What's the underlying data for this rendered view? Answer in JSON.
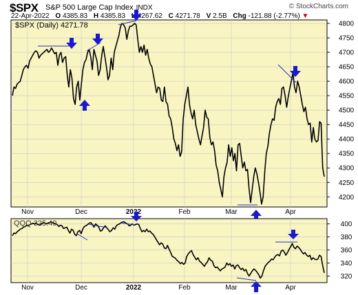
{
  "header": {
    "symbol": "$SPX",
    "description": "S&P 500 Large Cap Index",
    "exchange": "INDX",
    "watermark": "© StockCharts.com",
    "date": "22-Apr-2022",
    "open_label": "O",
    "open": "4385.83",
    "high_label": "H",
    "high": "4385.83",
    "low_label": "L",
    "low": "4267.62",
    "close_label": "C",
    "close": "4271.78",
    "volume_label": "V",
    "volume": "2.5B",
    "change_label": "Chg",
    "change": "-121.88 (-2.77%)",
    "change_icon": "down-triangle-icon",
    "negative_color": "#cc0000"
  },
  "colors": {
    "panel_bg": "#f8f5c2",
    "line": "#000000",
    "arrow": "#1a1acc",
    "trendline": "#2a2acc"
  },
  "chart_data": [
    {
      "type": "line",
      "legend": "$SPX (Daily) 4271.78",
      "x_ticks": [
        "Nov",
        "Dec",
        "2022",
        "Feb",
        "Mar",
        "Apr"
      ],
      "y_ticks": [
        4200,
        4250,
        4300,
        4350,
        4400,
        4450,
        4500,
        4550,
        4600,
        4650,
        4700,
        4750,
        4800
      ],
      "ylim": [
        4165,
        4812
      ],
      "grid": true,
      "series": [
        {
          "values": [
            4550,
            4580,
            4575,
            4590,
            4595,
            4600,
            4620,
            4640,
            4650,
            4655,
            4645,
            4670,
            4680,
            4690,
            4700,
            4705,
            4700,
            4680,
            4690,
            4695,
            4700,
            4705,
            4710,
            4700,
            4705,
            4715,
            4705,
            4695,
            4700,
            4655,
            4690,
            4700,
            4665,
            4680,
            4685,
            4620,
            4580,
            4640,
            4610,
            4540,
            4520,
            4580,
            4600,
            4535,
            4590,
            4640,
            4665,
            4675,
            4700,
            4710,
            4685,
            4640,
            4710,
            4690,
            4670,
            4620,
            4640,
            4690,
            4720,
            4685,
            4650,
            4605,
            4620,
            4680,
            4640,
            4700,
            4720,
            4740,
            4760,
            4790,
            4800,
            4795,
            4785,
            4745,
            4775,
            4790,
            4790,
            4795,
            4800,
            4795,
            4745,
            4700,
            4720,
            4700,
            4725,
            4690,
            4710,
            4680,
            4660,
            4650,
            4620,
            4590,
            4560,
            4580,
            4575,
            4535,
            4530,
            4580,
            4530,
            4520,
            4480,
            4470,
            4440,
            4400,
            4385,
            4360,
            4380,
            4340,
            4355,
            4470,
            4520,
            4550,
            4580,
            4520,
            4490,
            4470,
            4500,
            4450,
            4425,
            4400,
            4380,
            4410,
            4440,
            4500,
            4475,
            4470,
            4405,
            4380,
            4390,
            4360,
            4310,
            4290,
            4250,
            4225,
            4200,
            4270,
            4300,
            4320,
            4380,
            4340,
            4370,
            4325,
            4350,
            4290,
            4380,
            4385,
            4340,
            4300,
            4320,
            4290,
            4295,
            4230,
            4180,
            4225,
            4270,
            4300,
            4280,
            4250,
            4215,
            4175,
            4200,
            4285,
            4350,
            4375,
            4420,
            4450,
            4470,
            4465,
            4510,
            4530,
            4540,
            4520,
            4575,
            4580,
            4550,
            4510,
            4545,
            4575,
            4600,
            4630,
            4580,
            4560,
            4600,
            4580,
            4550,
            4520,
            4495,
            4510,
            4470,
            4450,
            4455,
            4390,
            4440,
            4400,
            4390,
            4395,
            4460,
            4455,
            4300,
            4270
          ]
        }
      ]
    },
    {
      "type": "line",
      "legend": "QQQ 325.40",
      "x_ticks": [
        "Nov",
        "Dec",
        "2022",
        "Feb",
        "Mar",
        "Apr"
      ],
      "y_ticks": [
        320,
        340,
        360,
        380,
        400
      ],
      "ylim": [
        310,
        408
      ],
      "grid": true,
      "series": [
        {
          "values": [
            382,
            386,
            385,
            388,
            390,
            392,
            393,
            395,
            396,
            398,
            397,
            399,
            400,
            401,
            400,
            401,
            399,
            398,
            400,
            401,
            402,
            400,
            401,
            402,
            403,
            402,
            401,
            400,
            399,
            396,
            398,
            397,
            393,
            394,
            395,
            390,
            386,
            392,
            390,
            384,
            382,
            388,
            390,
            385,
            392,
            396,
            397,
            399,
            401,
            402,
            399,
            395,
            400,
            398,
            395,
            389,
            390,
            394,
            397,
            394,
            391,
            388,
            390,
            394,
            392,
            397,
            399,
            400,
            402,
            403,
            403,
            401,
            400,
            397,
            398,
            400,
            398,
            399,
            400,
            399,
            393,
            388,
            390,
            388,
            392,
            388,
            389,
            386,
            384,
            380,
            376,
            372,
            368,
            371,
            369,
            363,
            362,
            367,
            361,
            356,
            350,
            349,
            347,
            344,
            342,
            339,
            341,
            338,
            340,
            350,
            354,
            357,
            359,
            353,
            349,
            345,
            348,
            343,
            341,
            338,
            335,
            339,
            342,
            348,
            344,
            343,
            336,
            333,
            334,
            331,
            328,
            331,
            332,
            334,
            340,
            337,
            339,
            335,
            337,
            331,
            336,
            337,
            333,
            330,
            332,
            328,
            330,
            324,
            320,
            324,
            328,
            331,
            329,
            326,
            322,
            317,
            320,
            328,
            335,
            338,
            341,
            343,
            346,
            345,
            349,
            352,
            353,
            351,
            358,
            360,
            357,
            352,
            356,
            361,
            365,
            370,
            364,
            362,
            366,
            364,
            361,
            357,
            354,
            356,
            352,
            350,
            352,
            345,
            348,
            346,
            345,
            346,
            352,
            350,
            336,
            325
          ]
        }
      ]
    }
  ]
}
